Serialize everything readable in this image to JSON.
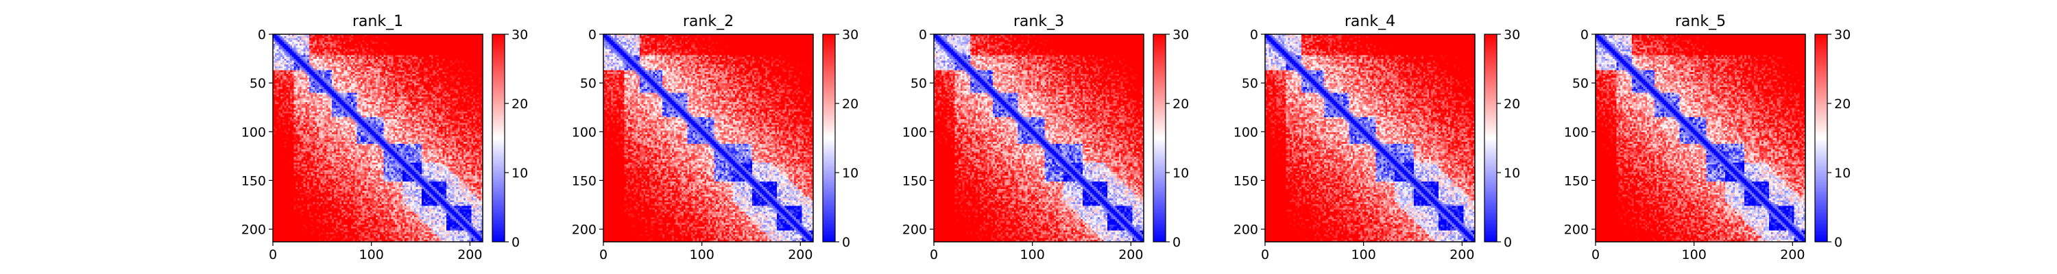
{
  "chart_data": [
    {
      "type": "heatmap",
      "title": "rank_1",
      "xlim": [
        0,
        213
      ],
      "ylim": [
        213,
        0
      ],
      "x_ticks": [
        0,
        100,
        200
      ],
      "y_ticks": [
        0,
        50,
        100,
        150,
        200
      ],
      "x_tick_labels": [
        "0",
        "100",
        "200"
      ],
      "y_tick_labels": [
        "0",
        "50",
        "100",
        "150",
        "200"
      ],
      "colorbar": {
        "range": [
          0,
          30
        ],
        "ticks": [
          0,
          10,
          20,
          30
        ],
        "tick_labels": [
          "0",
          "10",
          "20",
          "30"
        ]
      },
      "domain_breaks": [
        35,
        60,
        85,
        112,
        150,
        175,
        200
      ]
    },
    {
      "type": "heatmap",
      "title": "rank_2",
      "xlim": [
        0,
        213
      ],
      "ylim": [
        213,
        0
      ],
      "x_ticks": [
        0,
        100,
        200
      ],
      "y_ticks": [
        0,
        50,
        100,
        150,
        200
      ],
      "x_tick_labels": [
        "0",
        "100",
        "200"
      ],
      "y_tick_labels": [
        "0",
        "50",
        "100",
        "150",
        "200"
      ],
      "colorbar": {
        "range": [
          0,
          30
        ],
        "ticks": [
          0,
          10,
          20,
          30
        ],
        "tick_labels": [
          "0",
          "10",
          "20",
          "30"
        ]
      },
      "domain_breaks": [
        35,
        60,
        85,
        112,
        150,
        175,
        200
      ]
    },
    {
      "type": "heatmap",
      "title": "rank_3",
      "xlim": [
        0,
        213
      ],
      "ylim": [
        213,
        0
      ],
      "x_ticks": [
        0,
        100,
        200
      ],
      "y_ticks": [
        0,
        50,
        100,
        150,
        200
      ],
      "x_tick_labels": [
        "0",
        "100",
        "200"
      ],
      "y_tick_labels": [
        "0",
        "50",
        "100",
        "150",
        "200"
      ],
      "colorbar": {
        "range": [
          0,
          30
        ],
        "ticks": [
          0,
          10,
          20,
          30
        ],
        "tick_labels": [
          "0",
          "10",
          "20",
          "30"
        ]
      },
      "domain_breaks": [
        35,
        60,
        85,
        112,
        150,
        175,
        200
      ]
    },
    {
      "type": "heatmap",
      "title": "rank_4",
      "xlim": [
        0,
        213
      ],
      "ylim": [
        213,
        0
      ],
      "x_ticks": [
        0,
        100,
        200
      ],
      "y_ticks": [
        0,
        50,
        100,
        150,
        200
      ],
      "x_tick_labels": [
        "0",
        "100",
        "200"
      ],
      "y_tick_labels": [
        "0",
        "50",
        "100",
        "150",
        "200"
      ],
      "colorbar": {
        "range": [
          0,
          30
        ],
        "ticks": [
          0,
          10,
          20,
          30
        ],
        "tick_labels": [
          "0",
          "10",
          "20",
          "30"
        ]
      },
      "domain_breaks": [
        35,
        60,
        85,
        112,
        150,
        175,
        200
      ]
    },
    {
      "type": "heatmap",
      "title": "rank_5",
      "xlim": [
        0,
        213
      ],
      "ylim": [
        213,
        0
      ],
      "x_ticks": [
        0,
        100,
        200
      ],
      "y_ticks": [
        0,
        50,
        100,
        150,
        200
      ],
      "x_tick_labels": [
        "0",
        "100",
        "200"
      ],
      "y_tick_labels": [
        "0",
        "50",
        "100",
        "150",
        "200"
      ],
      "colorbar": {
        "range": [
          0,
          30
        ],
        "ticks": [
          0,
          10,
          20,
          30
        ],
        "tick_labels": [
          "0",
          "10",
          "20",
          "30"
        ]
      },
      "domain_breaks": [
        35,
        60,
        85,
        112,
        150,
        175,
        200
      ]
    }
  ],
  "colormap": {
    "low": "#0000ff",
    "mid": "#ffffff",
    "high": "#ff0000"
  }
}
